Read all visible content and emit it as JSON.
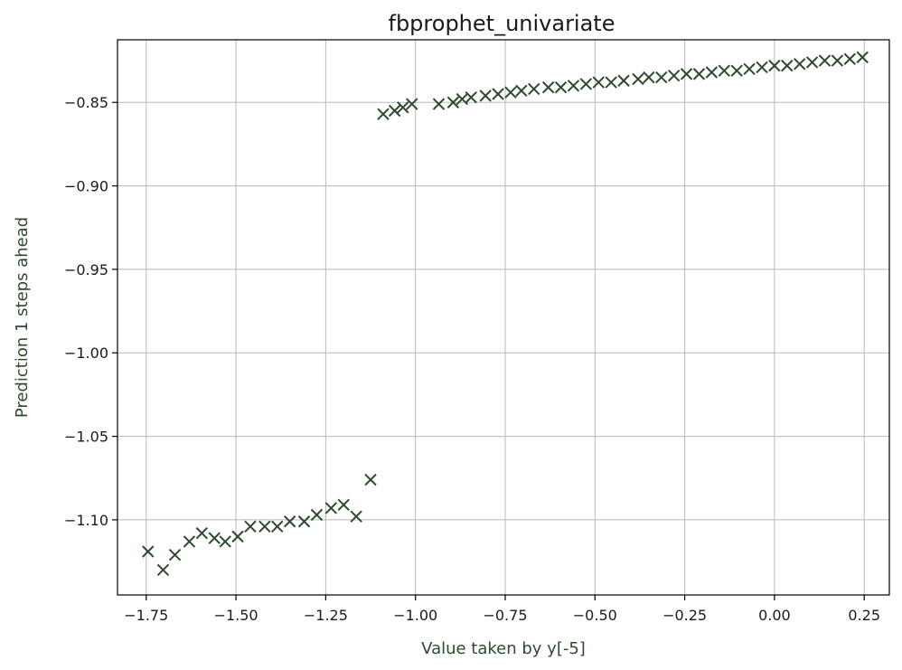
{
  "chart_data": {
    "type": "scatter",
    "title": "fbprophet_univariate",
    "xlabel": "Value taken by y[-5]",
    "ylabel": "Prediction 1 steps ahead",
    "xlim": [
      -1.83,
      0.32
    ],
    "ylim": [
      -1.145,
      -0.8125
    ],
    "xticks": [
      -1.75,
      -1.5,
      -1.25,
      -1.0,
      -0.75,
      -0.5,
      -0.25,
      0.0,
      0.25
    ],
    "xtick_labels": [
      "−1.75",
      "−1.50",
      "−1.25",
      "−1.00",
      "−0.75",
      "−0.50",
      "−0.25",
      "0.00",
      "0.25"
    ],
    "yticks": [
      -0.85,
      -0.9,
      -0.95,
      -1.0,
      -1.05,
      -1.1
    ],
    "ytick_labels": [
      "−0.85",
      "−0.90",
      "−0.95",
      "−1.00",
      "−1.05",
      "−1.10"
    ],
    "grid": true,
    "marker": "x",
    "color": "#2e4a2e",
    "series": [
      {
        "x": [
          -1.745,
          -1.703,
          -1.67,
          -1.63,
          -1.595,
          -1.56,
          -1.53,
          -1.495,
          -1.46,
          -1.42,
          -1.385,
          -1.35,
          -1.31,
          -1.275,
          -1.235,
          -1.2,
          -1.165,
          -1.125,
          -1.09,
          -1.058,
          -1.035,
          -1.01,
          -0.935,
          -0.895,
          -0.87,
          -0.845,
          -0.805,
          -0.77,
          -0.735,
          -0.705,
          -0.67,
          -0.63,
          -0.595,
          -0.56,
          -0.525,
          -0.49,
          -0.455,
          -0.42,
          -0.38,
          -0.35,
          -0.315,
          -0.28,
          -0.245,
          -0.21,
          -0.175,
          -0.14,
          -0.105,
          -0.07,
          -0.035,
          0.0,
          0.035,
          0.07,
          0.105,
          0.14,
          0.175,
          0.21,
          0.245
        ],
        "y": [
          -1.119,
          -1.13,
          -1.121,
          -1.113,
          -1.108,
          -1.111,
          -1.113,
          -1.11,
          -1.104,
          -1.104,
          -1.104,
          -1.101,
          -1.101,
          -1.097,
          -1.093,
          -1.091,
          -1.098,
          -1.076,
          -0.857,
          -0.855,
          -0.853,
          -0.851,
          -0.851,
          -0.85,
          -0.848,
          -0.847,
          -0.846,
          -0.845,
          -0.844,
          -0.843,
          -0.842,
          -0.841,
          -0.841,
          -0.84,
          -0.839,
          -0.838,
          -0.838,
          -0.837,
          -0.836,
          -0.835,
          -0.835,
          -0.834,
          -0.833,
          -0.833,
          -0.832,
          -0.831,
          -0.831,
          -0.83,
          -0.829,
          -0.828,
          -0.828,
          -0.827,
          -0.826,
          -0.825,
          -0.825,
          -0.824,
          -0.823
        ]
      }
    ]
  }
}
